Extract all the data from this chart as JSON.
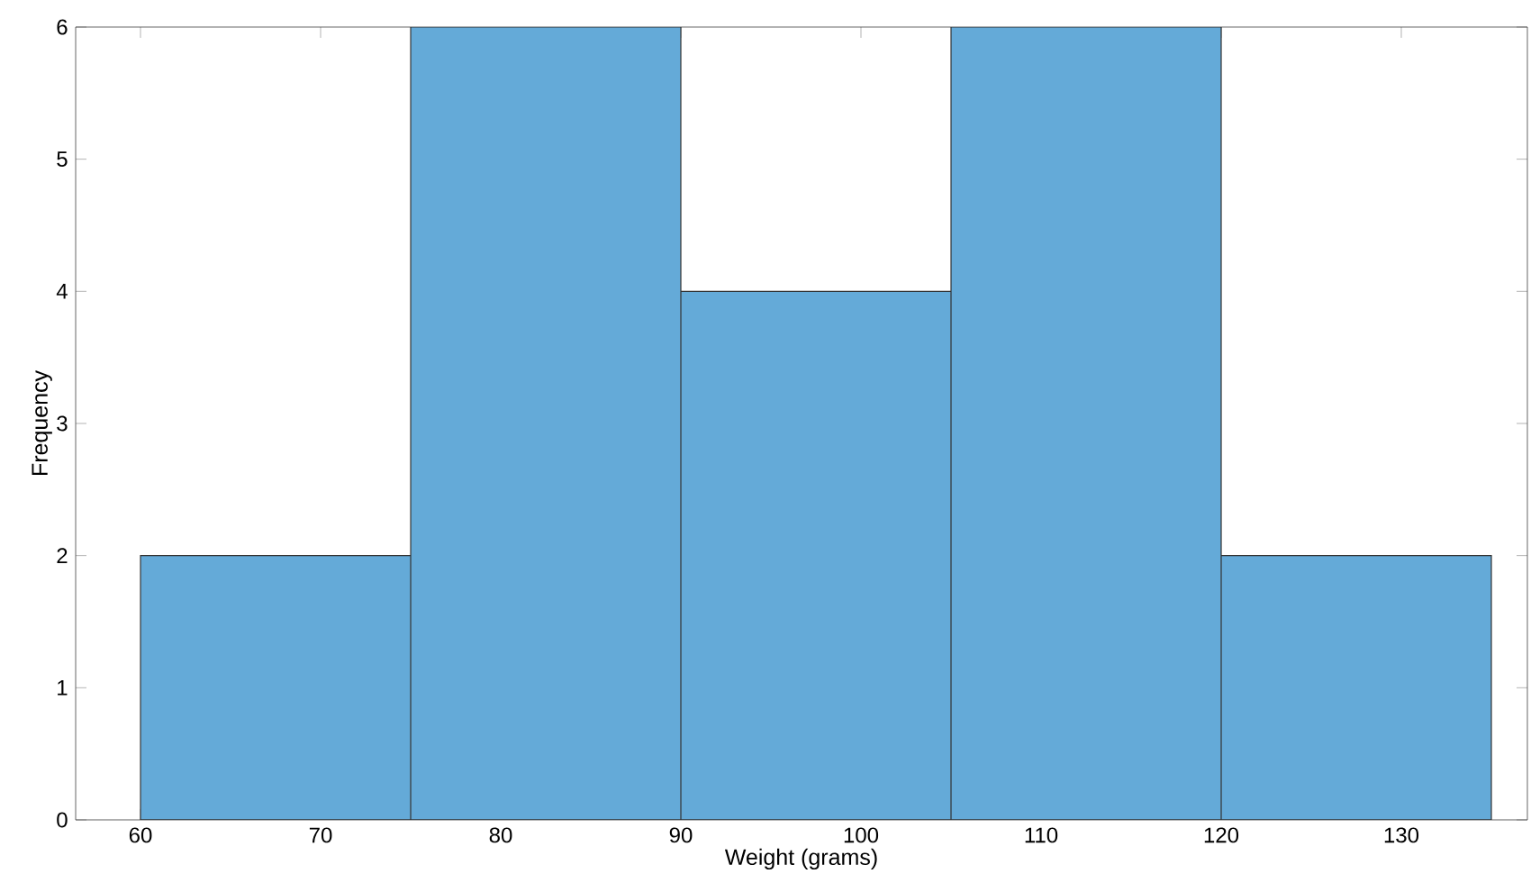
{
  "chart_data": {
    "type": "histogram",
    "xlabel": "Weight (grams)",
    "ylabel": "Frequency",
    "bins": [
      60,
      75,
      90,
      105,
      120,
      135
    ],
    "values": [
      2,
      6,
      4,
      6,
      2
    ],
    "color": "#64aad8",
    "xlim": [
      56.4,
      137
    ],
    "ylim": [
      0,
      6
    ],
    "xticks": [
      60,
      70,
      80,
      90,
      100,
      110,
      120,
      130
    ],
    "yticks": [
      0,
      1,
      2,
      3,
      4,
      5,
      6
    ],
    "grid": false
  }
}
